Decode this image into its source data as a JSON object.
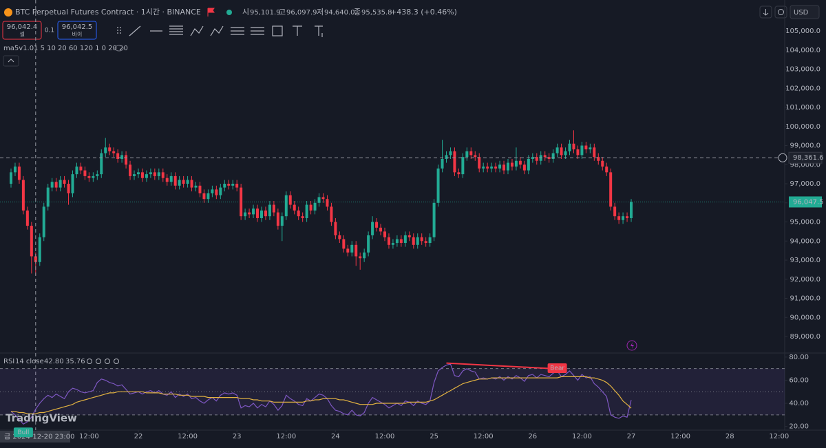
{
  "header": {
    "symbol": "BTC Perpetual Futures Contract · 1시간 · BINANCE",
    "ohlc": [
      {
        "key": "시",
        "value": "95,101.9"
      },
      {
        "key": "고",
        "value": "96,097.9"
      },
      {
        "key": "저",
        "value": "94,640.0"
      },
      {
        "key": "종",
        "value": "95,535.8"
      }
    ],
    "change": "+438.3 (+0.46%)",
    "currency": "USD"
  },
  "order": {
    "sell_price": "96,042.4",
    "sell": "셀",
    "spread": "0.1",
    "buy_price": "96,042.5",
    "buy": "바이"
  },
  "indicator": "ma5v1.01 5 10 20 60 120 1 0 20 20",
  "watermark": "TradingView",
  "chart_data": [
    {
      "type": "candlestick",
      "up_color": "#22ab94",
      "down_color": "#f23645",
      "ylim": [
        88172,
        106622
      ],
      "yticks": [
        {
          "value": 89000,
          "label": "89,000.0"
        },
        {
          "value": 90000,
          "label": "90,000.0"
        },
        {
          "value": 91000,
          "label": "91,000.0"
        },
        {
          "value": 92000,
          "label": "92,000.0"
        },
        {
          "value": 93000,
          "label": "93,000.0"
        },
        {
          "value": 94000,
          "label": "94,000.0"
        },
        {
          "value": 95000,
          "label": "95,000.0"
        },
        {
          "value": 96000,
          "label": "96,000.0"
        },
        {
          "value": 97000,
          "label": "97,000.0"
        },
        {
          "value": 98000,
          "label": "98,000.0"
        },
        {
          "value": 99000,
          "label": "99,000.0"
        },
        {
          "value": 100000,
          "label": "100,000.0"
        },
        {
          "value": 101000,
          "label": "101,000.0"
        },
        {
          "value": 102000,
          "label": "102,000.0"
        },
        {
          "value": 103000,
          "label": "103,000.0"
        },
        {
          "value": 104000,
          "label": "104,000.0"
        },
        {
          "value": 105000,
          "label": "105,000.0"
        }
      ],
      "xticks": [
        {
          "value": 19,
          "label": "12:00"
        },
        {
          "value": 31,
          "label": "22"
        },
        {
          "value": 43,
          "label": "12:00"
        },
        {
          "value": 55,
          "label": "23"
        },
        {
          "value": 67,
          "label": "12:00"
        },
        {
          "value": 79,
          "label": "24"
        },
        {
          "value": 91,
          "label": "12:00"
        },
        {
          "value": 103,
          "label": "25"
        },
        {
          "value": 115,
          "label": "12:00"
        },
        {
          "value": 127,
          "label": "26"
        },
        {
          "value": 139,
          "label": "12:00"
        },
        {
          "value": 151,
          "label": "27"
        },
        {
          "value": 163,
          "label": "12:00"
        },
        {
          "value": 175,
          "label": "28"
        },
        {
          "value": 187,
          "label": "12:00"
        }
      ],
      "crosshair": {
        "index": 6,
        "time_label": "금 2024-12-20 23:00",
        "price": {
          "value": 98361.6,
          "label": "98,361.6"
        }
      },
      "last_price": {
        "value": 96047.5,
        "label": "96,047.5"
      },
      "open": [
        97000,
        97600,
        97900,
        97200,
        95600,
        94800,
        93200,
        92900,
        94200,
        95800,
        96800,
        97100,
        96800,
        97200,
        97000,
        96500,
        97500,
        97900,
        97700,
        97400,
        97300,
        97400,
        97500,
        98600,
        98900,
        98700,
        98600,
        98300,
        98500,
        98000,
        97400,
        97500,
        97600,
        97300,
        97500,
        97600,
        97400,
        97600,
        97300,
        97100,
        97400,
        96900,
        97200,
        97000,
        97200,
        96800,
        96900,
        96500,
        96200,
        96500,
        96700,
        96400,
        96800,
        97000,
        96900,
        97000,
        96800,
        95300,
        95500,
        95400,
        95700,
        95200,
        95600,
        95300,
        95900,
        95500,
        94800,
        95300,
        96400,
        95900,
        95600,
        95300,
        95200,
        95900,
        95600,
        96000,
        96300,
        96200,
        95800,
        95000,
        94300,
        94100,
        93600,
        93400,
        93800,
        93200,
        93100,
        93400,
        94300,
        95000,
        94700,
        94500,
        94200,
        93800,
        93900,
        94100,
        93900,
        94300,
        94200,
        93800,
        94200,
        94000,
        93900,
        94200,
        96000,
        97800,
        98300,
        98500,
        98700,
        97600,
        97500,
        98400,
        98700,
        98500,
        98400,
        97800,
        97900,
        97800,
        97900,
        97800,
        98000,
        97700,
        98100,
        97900,
        98200,
        98000,
        97700,
        98300,
        98400,
        98200,
        98500,
        98400,
        98300,
        98600,
        98900,
        98500,
        98700,
        99100,
        98800,
        98500,
        99000,
        98800,
        98900,
        98400,
        98200,
        97900,
        97600,
        95800,
        95300,
        95100,
        95300,
        95200
      ],
      "high": [
        97800,
        98100,
        98100,
        97400,
        95800,
        95000,
        93400,
        94400,
        96000,
        97000,
        97300,
        97300,
        97400,
        97400,
        97200,
        97700,
        98100,
        98100,
        97900,
        97600,
        97600,
        97700,
        98800,
        99400,
        99100,
        98900,
        98800,
        98700,
        98700,
        98200,
        97700,
        97800,
        97800,
        97700,
        97800,
        97800,
        97800,
        97800,
        97500,
        97600,
        97600,
        97400,
        97400,
        97400,
        97400,
        97100,
        97100,
        96700,
        96700,
        96900,
        96900,
        97000,
        97200,
        97200,
        97200,
        97200,
        97000,
        95700,
        95700,
        95900,
        95900,
        95800,
        95800,
        96100,
        96100,
        95700,
        95500,
        96600,
        96600,
        96100,
        95800,
        95500,
        96100,
        96100,
        96200,
        96500,
        96500,
        96400,
        96000,
        95200,
        94500,
        94300,
        93800,
        94000,
        94000,
        93400,
        93600,
        94500,
        95300,
        95200,
        94900,
        94700,
        94400,
        94100,
        94300,
        94300,
        94500,
        94500,
        94400,
        94400,
        94400,
        94200,
        94400,
        96200,
        98000,
        99300,
        98700,
        98900,
        98900,
        97800,
        98600,
        98900,
        98900,
        98700,
        98600,
        98100,
        98100,
        98100,
        98100,
        98200,
        98200,
        98300,
        98300,
        98900,
        98400,
        98200,
        98500,
        98600,
        98600,
        98700,
        98700,
        98600,
        98800,
        99100,
        99100,
        98900,
        99300,
        99800,
        99000,
        99200,
        99200,
        99100,
        99100,
        98600,
        98400,
        98100,
        97800,
        96000,
        95500,
        95500,
        95500,
        96200
      ],
      "low": [
        96800,
        97400,
        97000,
        95400,
        94600,
        92300,
        92200,
        92700,
        94000,
        95600,
        96600,
        96600,
        96600,
        96800,
        95900,
        96300,
        97300,
        97500,
        97200,
        97100,
        97100,
        97200,
        97300,
        98400,
        98500,
        98400,
        98100,
        98100,
        97800,
        97200,
        97200,
        97300,
        97100,
        97100,
        97300,
        97200,
        97200,
        97100,
        96900,
        96900,
        96700,
        96700,
        96800,
        96800,
        96600,
        96600,
        96300,
        96000,
        96000,
        96300,
        96200,
        96200,
        96600,
        96700,
        96700,
        96600,
        95100,
        95100,
        95200,
        95200,
        95000,
        95000,
        95100,
        95100,
        95300,
        94600,
        94000,
        95100,
        95700,
        95400,
        95100,
        95000,
        95000,
        95400,
        95400,
        95800,
        96000,
        95600,
        94800,
        94100,
        93900,
        93400,
        93200,
        93200,
        92700,
        92500,
        92900,
        93200,
        94100,
        94500,
        94300,
        94000,
        93600,
        93600,
        93700,
        93700,
        93700,
        94000,
        93600,
        93600,
        93800,
        93700,
        93700,
        94000,
        95800,
        97600,
        98100,
        98300,
        97400,
        97300,
        97300,
        98200,
        98300,
        98200,
        97600,
        97600,
        97600,
        97600,
        97600,
        97600,
        97500,
        97500,
        97700,
        97700,
        97800,
        97500,
        97500,
        98100,
        98000,
        98000,
        98200,
        98100,
        98100,
        98400,
        98300,
        98300,
        98500,
        98600,
        98300,
        98300,
        98600,
        98600,
        98200,
        98000,
        97700,
        97400,
        95600,
        95100,
        94900,
        94900,
        95000,
        95000
      ],
      "close": [
        97600,
        97900,
        97200,
        95600,
        94800,
        93200,
        92900,
        94200,
        95800,
        96800,
        97100,
        96800,
        97200,
        97000,
        96500,
        97500,
        97900,
        97700,
        97400,
        97300,
        97400,
        97500,
        98600,
        98900,
        98700,
        98600,
        98300,
        98500,
        98000,
        97400,
        97500,
        97600,
        97300,
        97500,
        97600,
        97400,
        97600,
        97300,
        97100,
        97400,
        96900,
        97200,
        97000,
        97200,
        96800,
        96900,
        96500,
        96200,
        96500,
        96700,
        96400,
        96800,
        97000,
        96900,
        97000,
        96800,
        95300,
        95500,
        95400,
        95700,
        95200,
        95600,
        95300,
        95900,
        95500,
        94800,
        95300,
        96400,
        95900,
        95600,
        95300,
        95200,
        95900,
        95600,
        96000,
        96300,
        96200,
        95800,
        95000,
        94300,
        94100,
        93600,
        93400,
        93800,
        93200,
        93100,
        93400,
        94300,
        95000,
        94700,
        94500,
        94200,
        93800,
        93900,
        94100,
        93900,
        94300,
        94200,
        93800,
        94200,
        94000,
        93900,
        94200,
        96000,
        97800,
        98300,
        98500,
        98700,
        97600,
        97500,
        98400,
        98700,
        98500,
        98400,
        97800,
        97900,
        97800,
        97900,
        97800,
        98000,
        97700,
        98100,
        97900,
        98200,
        98000,
        97700,
        98300,
        98400,
        98200,
        98500,
        98400,
        98300,
        98600,
        98900,
        98500,
        98700,
        99100,
        98800,
        98500,
        99000,
        98800,
        98900,
        98400,
        98200,
        97900,
        97600,
        95800,
        95300,
        95100,
        95300,
        95200,
        96047.5
      ]
    },
    {
      "type": "line",
      "title": "RSI",
      "subtitle": "14 close",
      "ylim": [
        16.8,
        83.5
      ],
      "yticks": [
        {
          "value": 20,
          "label": "20.00"
        },
        {
          "value": 40,
          "label": "40.00"
        },
        {
          "value": 60,
          "label": "60.00"
        },
        {
          "value": 80,
          "label": "80.00"
        }
      ],
      "band": [
        30,
        70
      ],
      "midline": 50,
      "band_color": "#7e57c2",
      "legend_values": [
        {
          "value": 42.8,
          "label": "42.80"
        },
        {
          "value": 35.76,
          "label": "35.76"
        }
      ],
      "annotations": [
        {
          "text": "Bear",
          "color": "#f23645",
          "from": 106,
          "to": 133
        },
        {
          "text": "Bull",
          "color": "#22ab94",
          "from": 3,
          "to": 3
        }
      ],
      "series": [
        {
          "color": "#7e57c2",
          "values": [
            33,
            30,
            26,
            22,
            24,
            28,
            35,
            40,
            44,
            47,
            45,
            48,
            46,
            44,
            50,
            53,
            52,
            50,
            49,
            50,
            51,
            58,
            61,
            60,
            58,
            57,
            55,
            56,
            52,
            48,
            49,
            50,
            48,
            50,
            51,
            49,
            51,
            48,
            47,
            50,
            45,
            48,
            46,
            48,
            44,
            45,
            42,
            40,
            43,
            45,
            42,
            47,
            49,
            48,
            49,
            47,
            36,
            38,
            37,
            40,
            36,
            39,
            37,
            42,
            39,
            34,
            38,
            47,
            44,
            42,
            39,
            38,
            44,
            42,
            45,
            48,
            47,
            44,
            38,
            34,
            33,
            31,
            30,
            34,
            30,
            29,
            32,
            40,
            45,
            43,
            41,
            39,
            36,
            38,
            40,
            38,
            42,
            41,
            38,
            42,
            40,
            39,
            42,
            58,
            68,
            71,
            73,
            74,
            64,
            63,
            68,
            70,
            68,
            67,
            61,
            62,
            61,
            62,
            61,
            63,
            60,
            63,
            61,
            64,
            62,
            59,
            64,
            65,
            62,
            65,
            64,
            63,
            66,
            68,
            63,
            65,
            68,
            64,
            60,
            65,
            62,
            63,
            57,
            54,
            50,
            46,
            30,
            28,
            27,
            29,
            28,
            42.8
          ]
        },
        {
          "color": "#e3b341",
          "values": [
            33,
            33,
            32,
            32,
            31,
            31,
            31,
            32,
            32,
            33,
            34,
            35,
            36,
            37,
            38,
            39,
            41,
            42,
            43,
            44,
            45,
            46,
            47,
            48,
            49,
            49,
            50,
            50,
            50,
            50,
            50,
            50,
            50,
            49,
            49,
            49,
            49,
            48,
            48,
            48,
            48,
            47,
            47,
            47,
            46,
            46,
            46,
            46,
            45,
            45,
            45,
            45,
            45,
            45,
            45,
            45,
            44,
            44,
            44,
            43,
            43,
            42,
            42,
            42,
            41,
            41,
            41,
            41,
            41,
            41,
            41,
            41,
            42,
            42,
            43,
            43,
            44,
            44,
            44,
            44,
            43,
            43,
            42,
            41,
            40,
            39,
            39,
            39,
            39,
            40,
            40,
            40,
            40,
            40,
            40,
            40,
            40,
            41,
            41,
            41,
            41,
            41,
            42,
            43,
            45,
            47,
            49,
            51,
            53,
            55,
            57,
            58,
            59,
            60,
            61,
            61,
            61,
            62,
            62,
            62,
            62,
            62,
            62,
            62,
            62,
            62,
            62,
            62,
            62,
            62,
            62,
            62,
            62,
            62,
            63,
            63,
            63,
            63,
            63,
            63,
            63,
            62,
            62,
            61,
            60,
            58,
            55,
            51,
            47,
            42,
            39,
            35.76
          ]
        }
      ]
    }
  ]
}
